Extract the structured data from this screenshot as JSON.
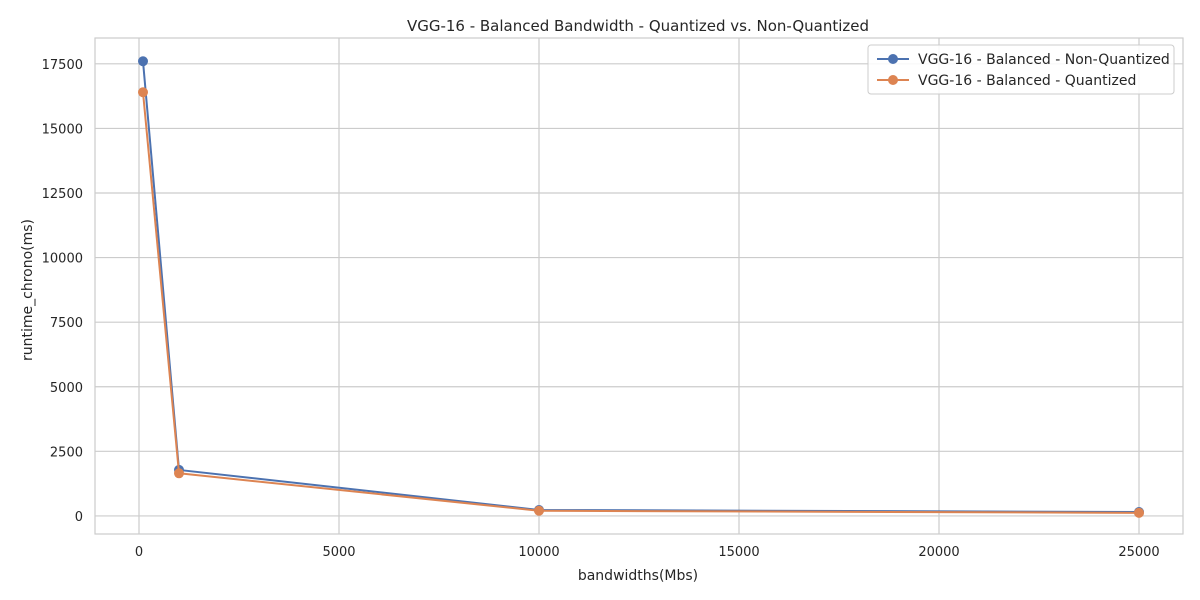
{
  "chart_data": {
    "type": "line",
    "title": "VGG-16 - Balanced Bandwidth - Quantized vs. Non-Quantized",
    "xlabel": "bandwidths(Mbs)",
    "ylabel": "runtime_chrono(ms)",
    "xlim": [
      -1100,
      26100
    ],
    "ylim": [
      -700,
      18500
    ],
    "xticks": [
      0,
      5000,
      10000,
      15000,
      20000,
      25000
    ],
    "yticks": [
      0,
      2500,
      5000,
      7500,
      10000,
      12500,
      15000,
      17500
    ],
    "grid": true,
    "legend_position": "top-right",
    "series": [
      {
        "name": "VGG-16 - Balanced - Non-Quantized",
        "color": "#4c72b0",
        "x": [
          100,
          1000,
          10000,
          25000
        ],
        "y": [
          17600,
          1780,
          230,
          150
        ]
      },
      {
        "name": "VGG-16 - Balanced - Quantized",
        "color": "#dd8452",
        "x": [
          100,
          1000,
          10000,
          25000
        ],
        "y": [
          16400,
          1650,
          200,
          120
        ]
      }
    ]
  }
}
